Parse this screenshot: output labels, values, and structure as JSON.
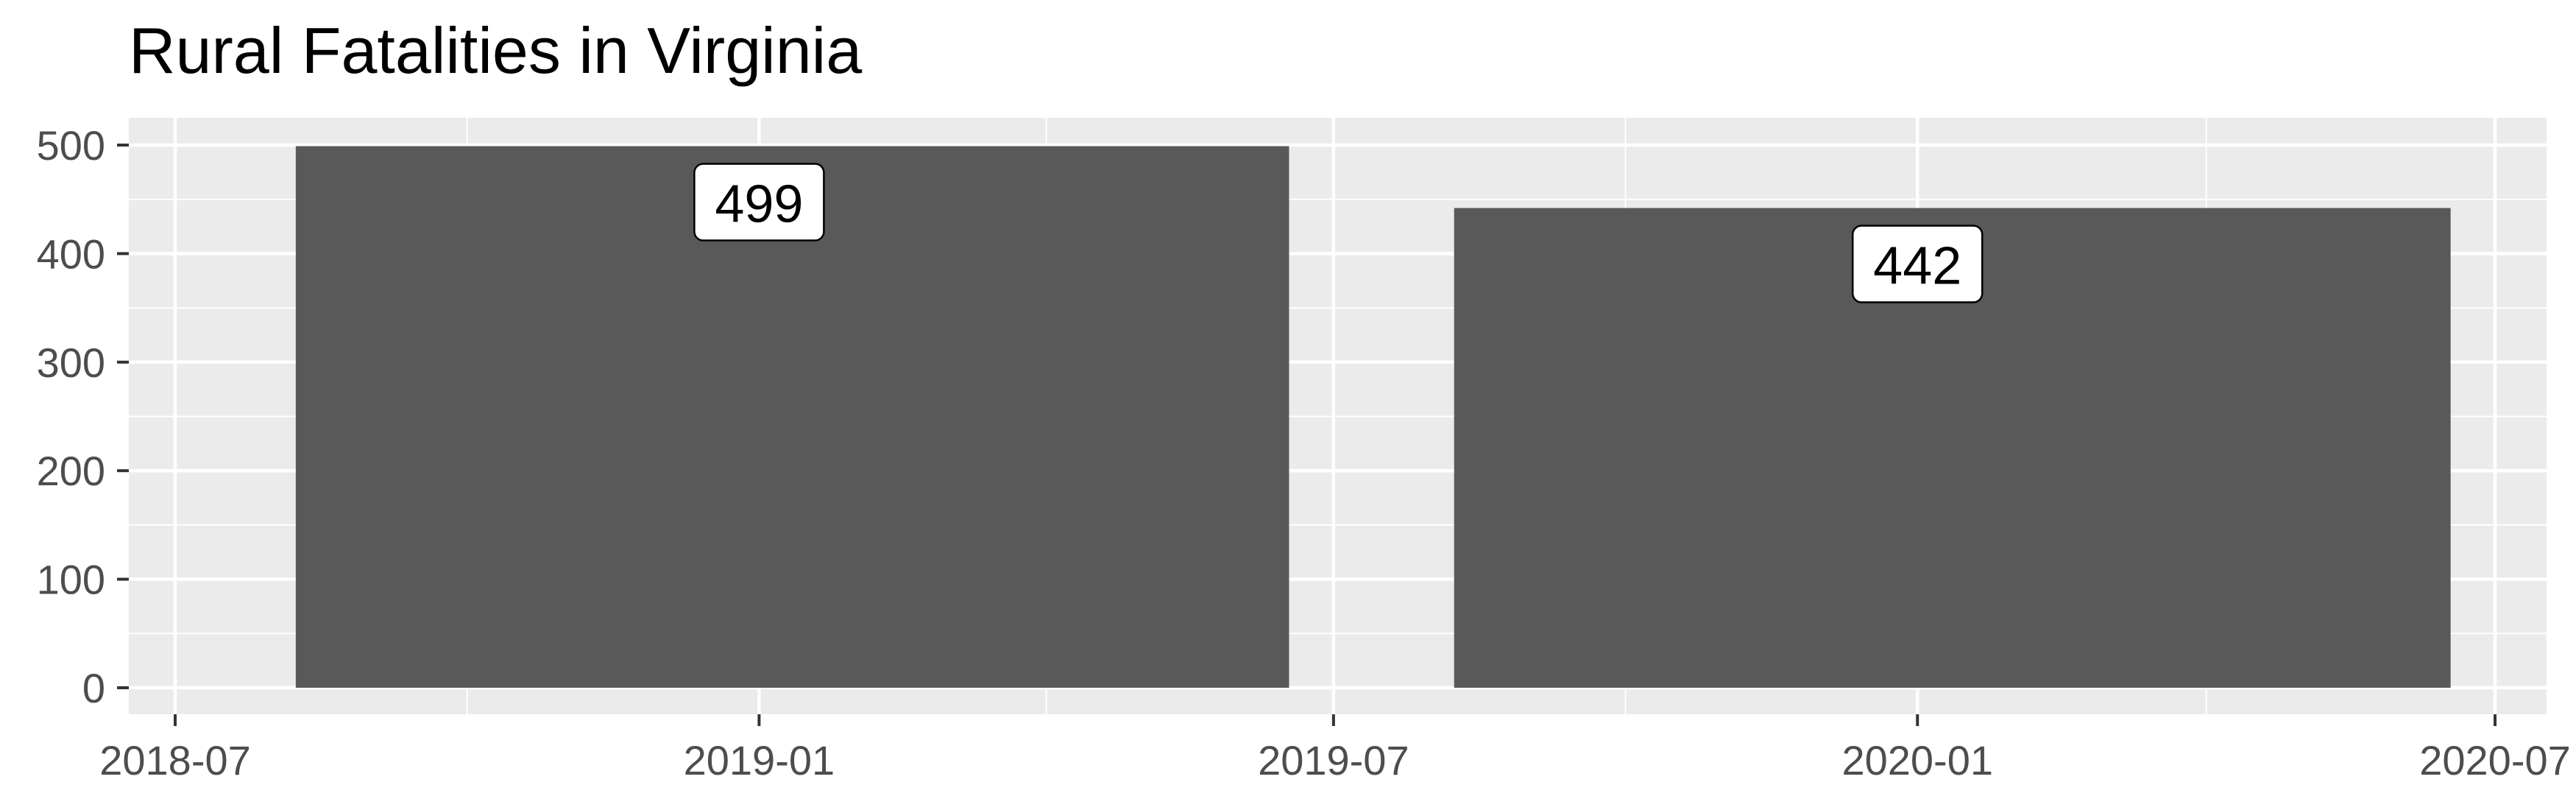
{
  "chart_data": {
    "type": "bar",
    "title": "Rural Fatalities in Virginia",
    "xlabel": "",
    "ylabel": "",
    "x_ticks": [
      "2018-07",
      "2019-01",
      "2019-07",
      "2020-01",
      "2020-07"
    ],
    "y_ticks": [
      0,
      100,
      200,
      300,
      400,
      500
    ],
    "ylim": [
      0,
      525
    ],
    "bars": [
      {
        "start": "2018-08-08",
        "end": "2019-06-17",
        "label_date": "2019-01-01",
        "value": 499
      },
      {
        "start": "2019-08-08",
        "end": "2020-06-17",
        "label_date": "2020-01-01",
        "value": 442
      }
    ],
    "grid": true,
    "colors": {
      "panel": "#ebebeb",
      "grid": "#ffffff",
      "bar": "#595959",
      "axis_text": "#4d4d4d"
    }
  }
}
